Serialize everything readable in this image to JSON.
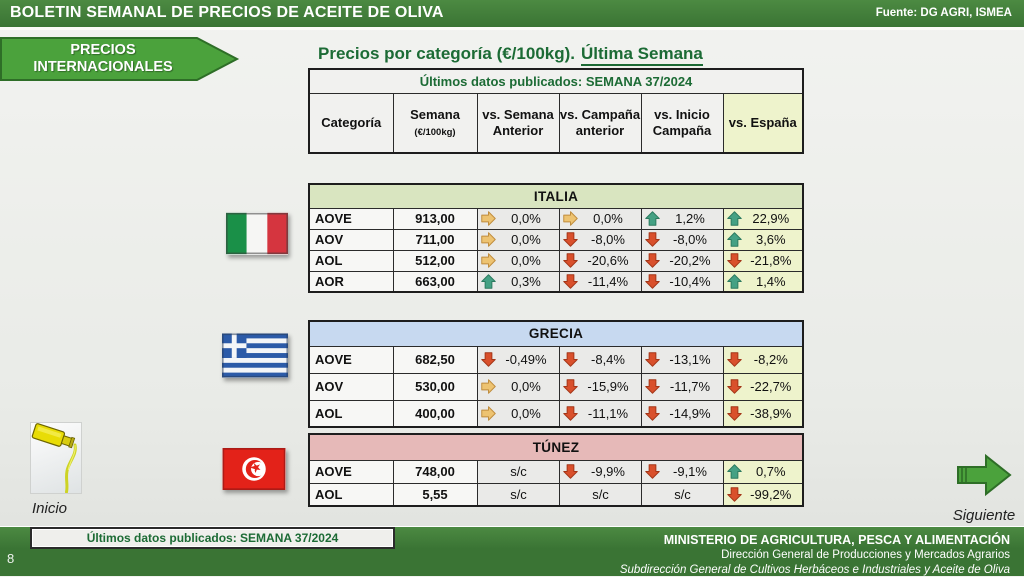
{
  "header": {
    "title": "BOLETIN SEMANAL DE PRECIOS DE ACEITE DE OLIVA",
    "source": "Fuente: DG AGRI, ISMEA"
  },
  "banner": {
    "line1": "PRECIOS",
    "line2": "INTERNACIONALES"
  },
  "main": {
    "title_plain": "Precios por categoría (€/100kg).",
    "title_underlined": "Última Semana",
    "published": "Últimos datos publicados: SEMANA 37/2024",
    "columns": [
      {
        "label": "Categoría"
      },
      {
        "label": "Semana",
        "sub": "(€/100kg)"
      },
      {
        "label": "vs. Semana Anterior"
      },
      {
        "label": "vs. Campaña anterior"
      },
      {
        "label": "vs. Inicio Campaña"
      },
      {
        "label": "vs. España",
        "highlight": true
      }
    ]
  },
  "tables": [
    {
      "country": "ITALIA",
      "flag": "italy",
      "header_color": "#d9e5c0",
      "rows": [
        {
          "cat": "AOVE",
          "value": "913,00",
          "cells": [
            {
              "icon": "right",
              "text": "0,0%"
            },
            {
              "icon": "right",
              "text": "0,0%"
            },
            {
              "icon": "up",
              "text": "1,2%"
            },
            {
              "icon": "up",
              "text": "22,9%"
            }
          ]
        },
        {
          "cat": "AOV",
          "value": "711,00",
          "cells": [
            {
              "icon": "right",
              "text": "0,0%"
            },
            {
              "icon": "down",
              "text": "-8,0%"
            },
            {
              "icon": "down",
              "text": "-8,0%"
            },
            {
              "icon": "up",
              "text": "3,6%"
            }
          ]
        },
        {
          "cat": "AOL",
          "value": "512,00",
          "cells": [
            {
              "icon": "right",
              "text": "0,0%"
            },
            {
              "icon": "down",
              "text": "-20,6%"
            },
            {
              "icon": "down",
              "text": "-20,2%"
            },
            {
              "icon": "down",
              "text": "-21,8%"
            }
          ]
        },
        {
          "cat": "AOR",
          "value": "663,00",
          "cells": [
            {
              "icon": "up",
              "text": "0,3%"
            },
            {
              "icon": "down",
              "text": "-11,4%"
            },
            {
              "icon": "down",
              "text": "-10,4%"
            },
            {
              "icon": "up",
              "text": "1,4%"
            }
          ]
        }
      ]
    },
    {
      "country": "GRECIA",
      "flag": "greece",
      "header_color": "#c7d9f0",
      "rows": [
        {
          "cat": "AOVE",
          "value": "682,50",
          "cells": [
            {
              "icon": "down",
              "text": "-0,49%"
            },
            {
              "icon": "down",
              "text": "-8,4%"
            },
            {
              "icon": "down",
              "text": "-13,1%"
            },
            {
              "icon": "down",
              "text": "-8,2%"
            }
          ]
        },
        {
          "cat": "AOV",
          "value": "530,00",
          "cells": [
            {
              "icon": "right",
              "text": "0,0%"
            },
            {
              "icon": "down",
              "text": "-15,9%"
            },
            {
              "icon": "down",
              "text": "-11,7%"
            },
            {
              "icon": "down",
              "text": "-22,7%"
            }
          ]
        },
        {
          "cat": "AOL",
          "value": "400,00",
          "cells": [
            {
              "icon": "right",
              "text": "0,0%"
            },
            {
              "icon": "down",
              "text": "-11,1%"
            },
            {
              "icon": "down",
              "text": "-14,9%"
            },
            {
              "icon": "down",
              "text": "-38,9%"
            }
          ]
        }
      ]
    },
    {
      "country": "TÚNEZ",
      "flag": "tunisia",
      "header_color": "#e6b9b8",
      "rows": [
        {
          "cat": "AOVE",
          "value": "748,00",
          "cells": [
            {
              "icon": null,
              "text": "s/c"
            },
            {
              "icon": "down",
              "text": "-9,9%"
            },
            {
              "icon": "down",
              "text": "-9,1%"
            },
            {
              "icon": "up",
              "text": "0,7%"
            }
          ]
        },
        {
          "cat": "AOL",
          "value": "5,55",
          "cells": [
            {
              "icon": null,
              "text": "s/c"
            },
            {
              "icon": null,
              "text": "s/c"
            },
            {
              "icon": null,
              "text": "s/c"
            },
            {
              "icon": "down",
              "text": "-99,2%"
            }
          ]
        }
      ]
    }
  ],
  "nav": {
    "inicio": "Inicio",
    "siguiente": "Siguiente",
    "page": "8"
  },
  "footer": {
    "badge": "Últimos datos publicados: SEMANA 37/2024",
    "line1": "MINISTERIO DE AGRICULTURA, PESCA Y ALIMENTACIÓN",
    "line2": "Dirección General de Producciones y Mercados Agrarios",
    "line3": "Subdirección General de Cultivos Herbáceos e Industriales y Aceite de Oliva"
  },
  "colors": {
    "bar_green": "#3a7434",
    "bar_green_light": "#4c8a42",
    "banner_green": "#4ba23c",
    "banner_border": "#2e6e27",
    "title_green": "#1c6b35",
    "espana_column": "#eef3cc",
    "arrows": {
      "up": {
        "fill": "#45a184",
        "stroke": "#2c7a5f"
      },
      "down": {
        "fill": "#d9502c",
        "stroke": "#a33517"
      },
      "right": {
        "fill": "#edc371",
        "stroke": "#bf8c3c"
      }
    }
  }
}
